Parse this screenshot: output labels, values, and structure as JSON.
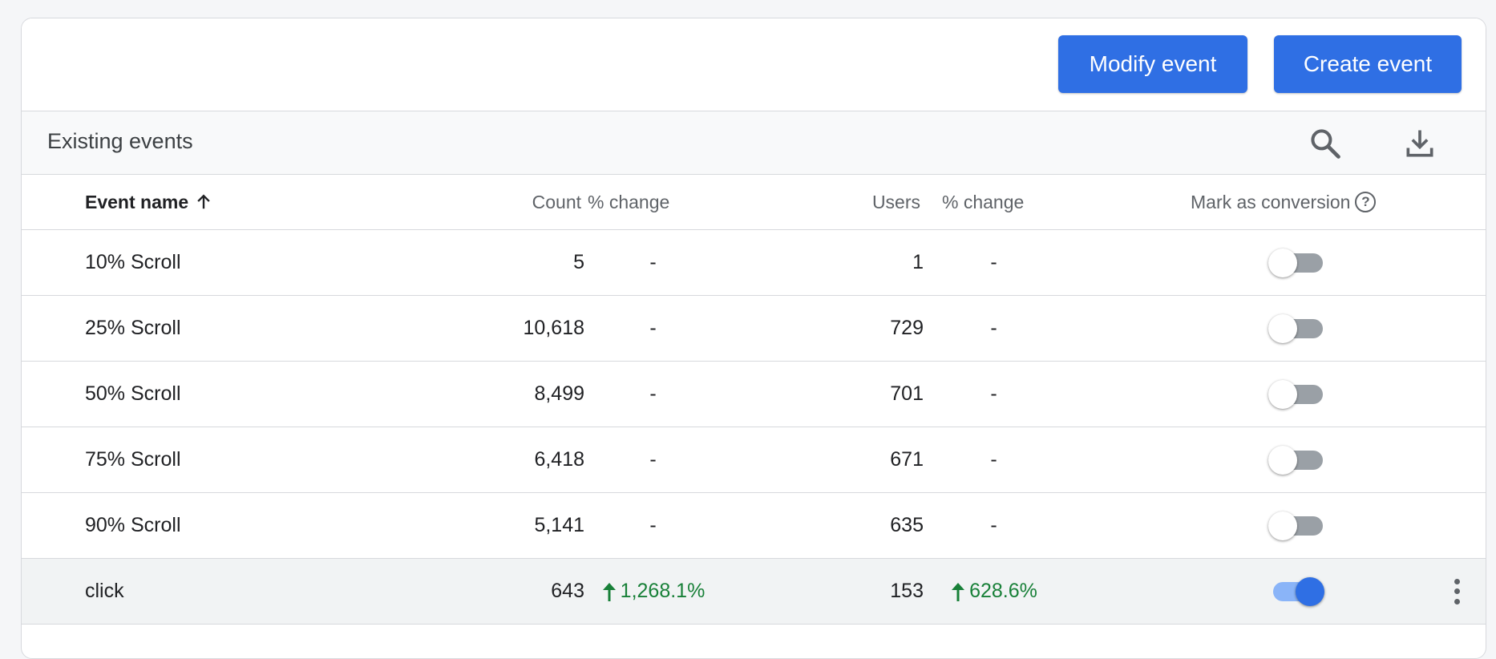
{
  "toolbar": {
    "modify_label": "Modify event",
    "create_label": "Create event"
  },
  "section": {
    "title": "Existing events",
    "icons": [
      "search-icon",
      "download-icon"
    ]
  },
  "table": {
    "headers": {
      "event_name": "Event name",
      "count": "Count",
      "count_change": "% change",
      "users": "Users",
      "users_change": "% change",
      "mark_as_conversion": "Mark as conversion",
      "help": "?"
    },
    "sort": {
      "column": "event_name",
      "direction": "ascending"
    },
    "rows": [
      {
        "name": "10% Scroll",
        "count": "5",
        "count_change": "-",
        "users": "1",
        "users_change": "-",
        "conversion": false
      },
      {
        "name": "25% Scroll",
        "count": "10,618",
        "count_change": "-",
        "users": "729",
        "users_change": "-",
        "conversion": false
      },
      {
        "name": "50% Scroll",
        "count": "8,499",
        "count_change": "-",
        "users": "701",
        "users_change": "-",
        "conversion": false
      },
      {
        "name": "75% Scroll",
        "count": "6,418",
        "count_change": "-",
        "users": "671",
        "users_change": "-",
        "conversion": false
      },
      {
        "name": "90% Scroll",
        "count": "5,141",
        "count_change": "-",
        "users": "635",
        "users_change": "-",
        "conversion": false
      },
      {
        "name": "click",
        "count": "643",
        "count_change": "1,268.1%",
        "users": "153",
        "users_change": "628.6%",
        "conversion": true
      }
    ]
  },
  "colors": {
    "accent": "#2f6fe4",
    "positive": "#188038",
    "toggle_off": "#9aa0a6",
    "toggle_on_track": "#8ab4f8"
  }
}
